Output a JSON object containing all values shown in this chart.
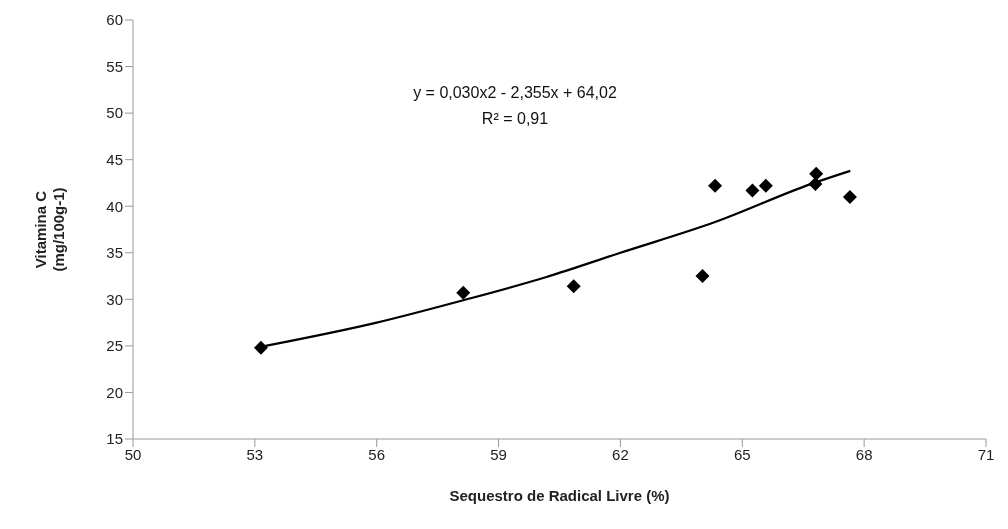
{
  "chart_data": {
    "type": "scatter",
    "xlabel": "Sequestro de Radical Livre (%)",
    "ylabel": "Vitamina C\n(mg/100g-1)",
    "xlim": [
      50,
      71
    ],
    "xticks": [
      50,
      53,
      56,
      59,
      62,
      65,
      68,
      71
    ],
    "ylim": [
      15,
      60
    ],
    "yticks": [
      15,
      20,
      25,
      30,
      35,
      40,
      45,
      50,
      55,
      60
    ],
    "grid": false,
    "annotations": [
      "y = 0,030x2 - 2,355x + 64,02",
      "R² = 0,91"
    ],
    "series": [
      {
        "marker": "diamond",
        "color": "#000000",
        "x": [
          53.15,
          58.13,
          60.85,
          64.02,
          64.33,
          65.25,
          65.58,
          66.82,
          66.8,
          67.65
        ],
        "values": [
          24.8,
          30.7,
          31.4,
          32.5,
          42.2,
          41.7,
          42.2,
          43.5,
          42.4,
          41.0
        ]
      },
      {
        "type": "line",
        "color": "#000000",
        "line_style": "solid",
        "x": [
          53.26,
          56,
          58.13,
          60.18,
          62,
          64.33,
          66.7,
          67.66
        ],
        "values": [
          25.0,
          27.5,
          29.9,
          32.4,
          35.0,
          38.3,
          42.4,
          43.8
        ]
      }
    ]
  }
}
